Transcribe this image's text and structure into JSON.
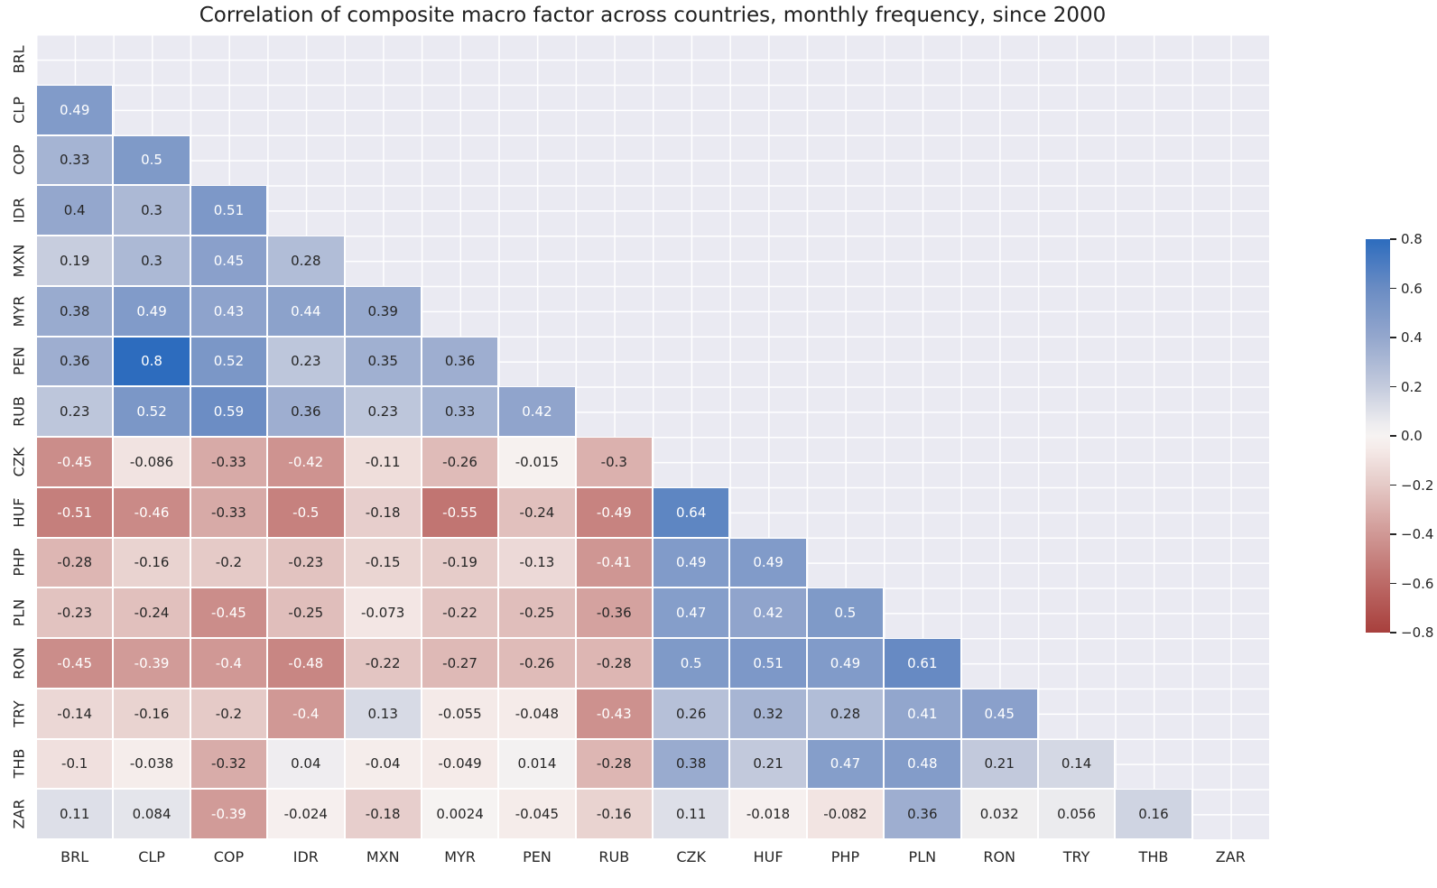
{
  "title": "Correlation of composite macro factor across countries, monthly frequency, since 2000",
  "chart_data": {
    "type": "heatmap",
    "title": "Correlation of composite macro factor across countries, monthly frequency, since 2000",
    "categories": [
      "BRL",
      "CLP",
      "COP",
      "IDR",
      "MXN",
      "MYR",
      "PEN",
      "RUB",
      "CZK",
      "HUF",
      "PHP",
      "PLN",
      "RON",
      "TRY",
      "THB",
      "ZAR"
    ],
    "mask": "upper-triangle-and-diagonal",
    "rows": [
      {
        "label": "BRL",
        "values": []
      },
      {
        "label": "CLP",
        "values": [
          "0.49"
        ]
      },
      {
        "label": "COP",
        "values": [
          "0.33",
          "0.5"
        ]
      },
      {
        "label": "IDR",
        "values": [
          "0.4",
          "0.3",
          "0.51"
        ]
      },
      {
        "label": "MXN",
        "values": [
          "0.19",
          "0.3",
          "0.45",
          "0.28"
        ]
      },
      {
        "label": "MYR",
        "values": [
          "0.38",
          "0.49",
          "0.43",
          "0.44",
          "0.39"
        ]
      },
      {
        "label": "PEN",
        "values": [
          "0.36",
          "0.8",
          "0.52",
          "0.23",
          "0.35",
          "0.36"
        ]
      },
      {
        "label": "RUB",
        "values": [
          "0.23",
          "0.52",
          "0.59",
          "0.36",
          "0.23",
          "0.33",
          "0.42"
        ]
      },
      {
        "label": "CZK",
        "values": [
          "-0.45",
          "-0.086",
          "-0.33",
          "-0.42",
          "-0.11",
          "-0.26",
          "-0.015",
          "-0.3"
        ]
      },
      {
        "label": "HUF",
        "values": [
          "-0.51",
          "-0.46",
          "-0.33",
          "-0.5",
          "-0.18",
          "-0.55",
          "-0.24",
          "-0.49",
          "0.64"
        ]
      },
      {
        "label": "PHP",
        "values": [
          "-0.28",
          "-0.16",
          "-0.2",
          "-0.23",
          "-0.15",
          "-0.19",
          "-0.13",
          "-0.41",
          "0.49",
          "0.49"
        ]
      },
      {
        "label": "PLN",
        "values": [
          "-0.23",
          "-0.24",
          "-0.45",
          "-0.25",
          "-0.073",
          "-0.22",
          "-0.25",
          "-0.36",
          "0.47",
          "0.42",
          "0.5"
        ]
      },
      {
        "label": "RON",
        "values": [
          "-0.45",
          "-0.39",
          "-0.4",
          "-0.48",
          "-0.22",
          "-0.27",
          "-0.26",
          "-0.28",
          "0.5",
          "0.51",
          "0.49",
          "0.61"
        ]
      },
      {
        "label": "TRY",
        "values": [
          "-0.14",
          "-0.16",
          "-0.2",
          "-0.4",
          "0.13",
          "-0.055",
          "-0.048",
          "-0.43",
          "0.26",
          "0.32",
          "0.28",
          "0.41",
          "0.45"
        ]
      },
      {
        "label": "THB",
        "values": [
          "-0.1",
          "-0.038",
          "-0.32",
          "0.04",
          "-0.04",
          "-0.049",
          "0.014",
          "-0.28",
          "0.38",
          "0.21",
          "0.47",
          "0.48",
          "0.21",
          "0.14"
        ]
      },
      {
        "label": "ZAR",
        "values": [
          "0.11",
          "0.084",
          "-0.39",
          "-0.024",
          "-0.18",
          "0.0024",
          "-0.045",
          "-0.16",
          "0.11",
          "-0.018",
          "-0.082",
          "0.36",
          "0.032",
          "0.056",
          "0.16"
        ]
      }
    ],
    "colorbar": {
      "vmin": -0.8,
      "vmax": 0.8,
      "ticks": [
        "0.8",
        "0.6",
        "0.4",
        "0.2",
        "0.0",
        "−0.2",
        "−0.4",
        "−0.6",
        "−0.8"
      ]
    },
    "colors": {
      "positive_end": "#2d6cbe",
      "zero": "#f6f3f2",
      "negative_end": "#a8403d",
      "plot_background": "#eaeaf2",
      "grid": "#ffffff",
      "annotation_dark": "#262626",
      "annotation_light": "#ffffff"
    },
    "layout": {
      "legend_position": "right",
      "grid": true,
      "annotated": true
    }
  }
}
